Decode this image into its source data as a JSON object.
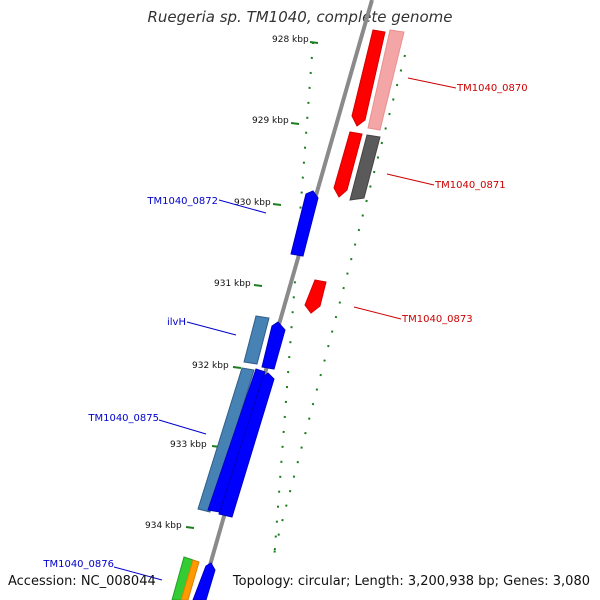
{
  "title": "Ruegeria sp. TM1040, complete genome",
  "footer": {
    "accession": "Accession: NC_008044",
    "summary": "Topology: circular; Length: 3,200,938 bp; Genes: 3,080"
  },
  "colors": {
    "backbone": "#808080",
    "ticks": "#1e7d1e",
    "forward_gene": "#0000ff",
    "reverse_gene": "#ff0000",
    "rna_gene": "#4682b4",
    "pink_gene": "#f3a0a0",
    "grey_gene": "#5a5a5a",
    "green_gene": "#33cc33",
    "orange_gene": "#ff9900",
    "red_label": "#cc0000",
    "blue_label": "#0000cc"
  },
  "scale": {
    "unit": "kbp",
    "ticks": [
      {
        "label": "928 kbp"
      },
      {
        "label": "929 kbp"
      },
      {
        "label": "930 kbp"
      },
      {
        "label": "931 kbp"
      },
      {
        "label": "932 kbp"
      },
      {
        "label": "933 kbp"
      },
      {
        "label": "934 kbp"
      }
    ]
  },
  "gene_labels": {
    "TM1040_0870": "TM1040_0870",
    "TM1040_0871": "TM1040_0871",
    "TM1040_0872": "TM1040_0872",
    "TM1040_0873": "TM1040_0873",
    "ilvH": "ilvH",
    "TM1040_0875": "TM1040_0875",
    "TM1040_0876": "TM1040_0876"
  }
}
